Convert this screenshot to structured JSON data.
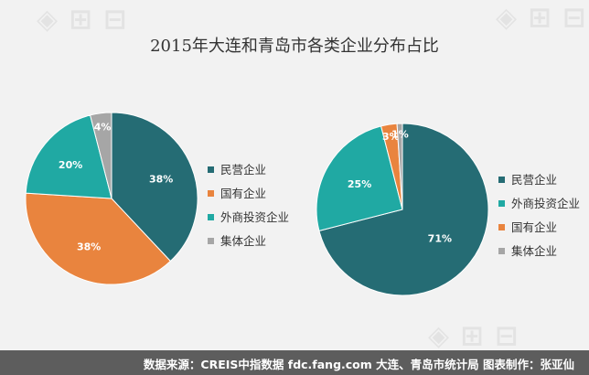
{
  "title": "2015年大连和青岛市各类企业分布占比",
  "footer": "数据来源：CREIS中指数据 fdc.fang.com 大连、青岛市统计局  图表制作：张亚仙",
  "watermark_logo": "中国房地产指数系统",
  "colors": {
    "民营企业": "#256c74",
    "国有企业": "#e9843e",
    "外商投资企业": "#20a9a3",
    "集体企业": "#a6a6a6"
  },
  "chart_data": [
    {
      "type": "pie",
      "title": "",
      "legend_position": "right",
      "legend": [
        "民营企业",
        "国有企业",
        "外商投资企业",
        "集体企业"
      ],
      "slices": [
        {
          "name": "民营企业",
          "value": 38,
          "label": "38%"
        },
        {
          "name": "国有企业",
          "value": 38,
          "label": "38%"
        },
        {
          "name": "外商投资企业",
          "value": 20,
          "label": "20%"
        },
        {
          "name": "集体企业",
          "value": 4,
          "label": "4%"
        }
      ]
    },
    {
      "type": "pie",
      "title": "",
      "legend_position": "right",
      "legend": [
        "民营企业",
        "外商投资企业",
        "国有企业",
        "集体企业"
      ],
      "slices": [
        {
          "name": "民营企业",
          "value": 71,
          "label": "71%"
        },
        {
          "name": "外商投资企业",
          "value": 25,
          "label": "25%"
        },
        {
          "name": "国有企业",
          "value": 3,
          "label": "3%"
        },
        {
          "name": "集体企业",
          "value": 1,
          "label": "1%"
        }
      ]
    }
  ]
}
